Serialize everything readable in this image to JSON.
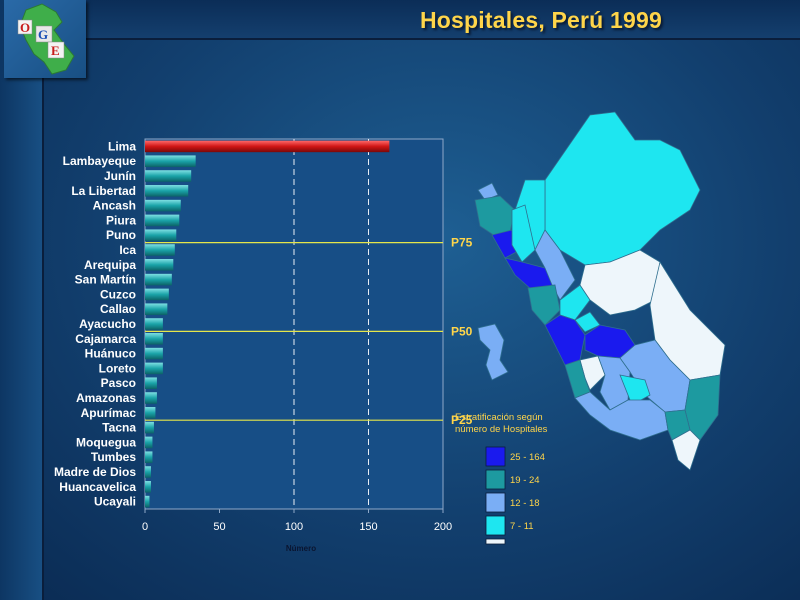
{
  "page": {
    "title": "Hospitales, Perú 1999"
  },
  "logo": {
    "letters": [
      "O",
      "G",
      "E"
    ]
  },
  "chart_data": {
    "type": "bar",
    "orientation": "horizontal",
    "title": "Hospitales, Perú 1999",
    "xlabel": "Número",
    "ylabel": "",
    "xlim": [
      0,
      200
    ],
    "xticks": [
      0,
      50,
      100,
      150,
      200
    ],
    "grid_x": [
      100,
      150
    ],
    "categories": [
      "Lima",
      "Lambayeque",
      "Junín",
      "La Libertad",
      "Ancash",
      "Piura",
      "Puno",
      "Ica",
      "Arequipa",
      "San Martín",
      "Cuzco",
      "Callao",
      "Ayacucho",
      "Cajamarca",
      "Huánuco",
      "Loreto",
      "Pasco",
      "Amazonas",
      "Apurímac",
      "Tacna",
      "Moquegua",
      "Tumbes",
      "Madre de Dios",
      "Huancavelica",
      "Ucayali"
    ],
    "values": [
      164,
      34,
      31,
      29,
      24,
      23,
      21,
      20,
      19,
      18,
      16,
      15,
      12,
      12,
      12,
      12,
      8,
      8,
      7,
      6,
      5,
      5,
      4,
      4,
      3
    ],
    "highlight_color": "#d01515",
    "bar_color": "#1aa3a8",
    "percentile_lines": [
      {
        "label": "P75",
        "after_category": "Puno"
      },
      {
        "label": "P50",
        "after_category": "Ayacucho"
      },
      {
        "label": "P25",
        "after_category": "Apurímac"
      }
    ]
  },
  "legend": {
    "title": "Estratificación según número de Hospitales",
    "items": [
      {
        "label": "25 - 164",
        "color": "#1a1aee"
      },
      {
        "label": "19 - 24",
        "color": "#1d9aa0"
      },
      {
        "label": "12 - 18",
        "color": "#7aaef5"
      },
      {
        "label": "7 - 11",
        "color": "#1ee6f0"
      },
      {
        "label": "",
        "color": "#eef6fb"
      }
    ]
  }
}
